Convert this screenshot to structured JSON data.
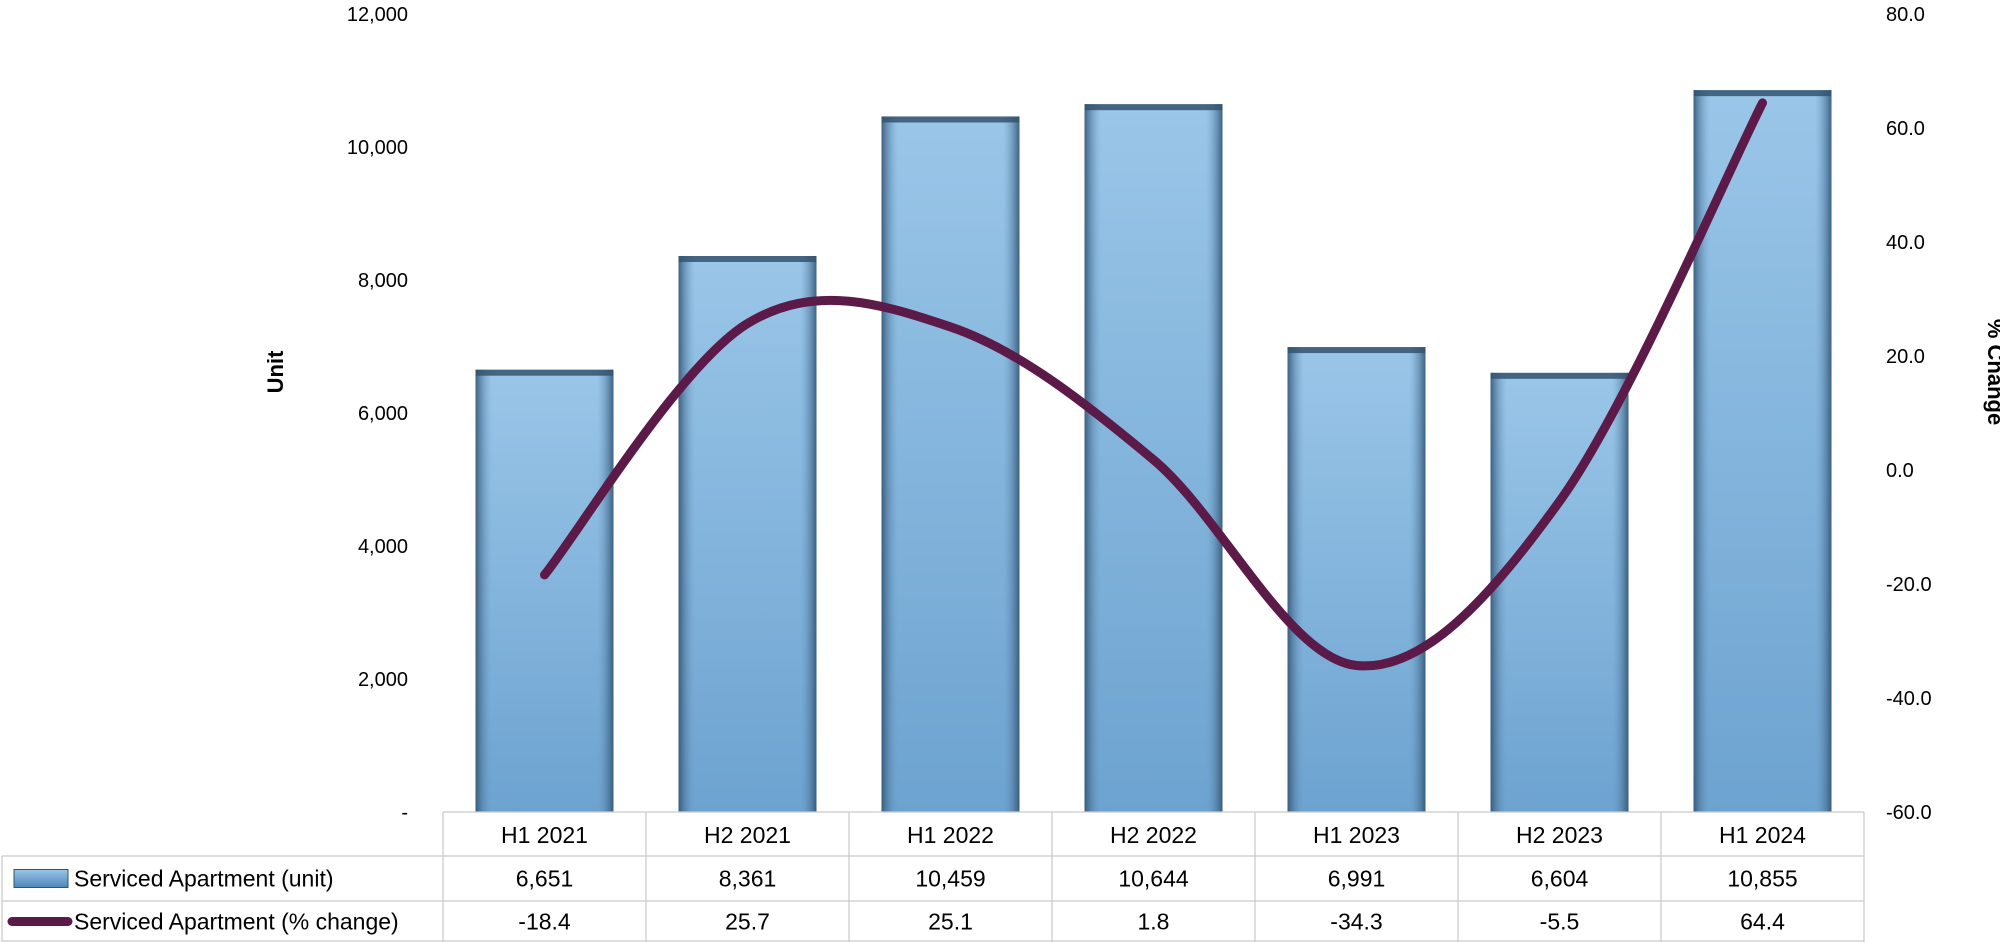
{
  "chart_data": {
    "type": "bar",
    "categories": [
      "H1 2021",
      "H2 2021",
      "H1 2022",
      "H2 2022",
      "H1 2023",
      "H2 2023",
      "H1 2024"
    ],
    "series": [
      {
        "name": "Serviced Apartment (unit)",
        "type": "bar",
        "axis": "left",
        "values": [
          6651,
          8361,
          10459,
          10644,
          6991,
          6604,
          10855
        ],
        "value_labels": [
          "6,651",
          "8,361",
          "10,459",
          "10,644",
          "6,991",
          "6,604",
          "10,855"
        ],
        "color": "#7fb3dc"
      },
      {
        "name": "Serviced Apartment (% change)",
        "type": "line",
        "axis": "right",
        "values": [
          -18.4,
          25.7,
          25.1,
          1.8,
          -34.3,
          -5.5,
          64.4
        ],
        "value_labels": [
          "-18.4",
          "25.7",
          "25.1",
          "1.8",
          "-34.3",
          "-5.5",
          "64.4"
        ],
        "color": "#5b1a48"
      }
    ],
    "ylabel": "Unit",
    "y2label": "% Change",
    "ylim": [
      0,
      12000
    ],
    "y2lim": [
      -60,
      80
    ],
    "y_ticks": [
      0,
      2000,
      4000,
      6000,
      8000,
      10000,
      12000
    ],
    "y_tick_labels": [
      "-",
      "2,000",
      "4,000",
      "6,000",
      "8,000",
      "10,000",
      "12,000"
    ],
    "y2_ticks": [
      -60,
      -40,
      -20,
      0,
      20,
      40,
      60,
      80
    ],
    "y2_tick_labels": [
      "-60.0",
      "-40.0",
      "-20.0",
      "0.0",
      "20.0",
      "40.0",
      "60.0",
      "80.0"
    ],
    "legend": "data-table-below",
    "grid": false
  }
}
